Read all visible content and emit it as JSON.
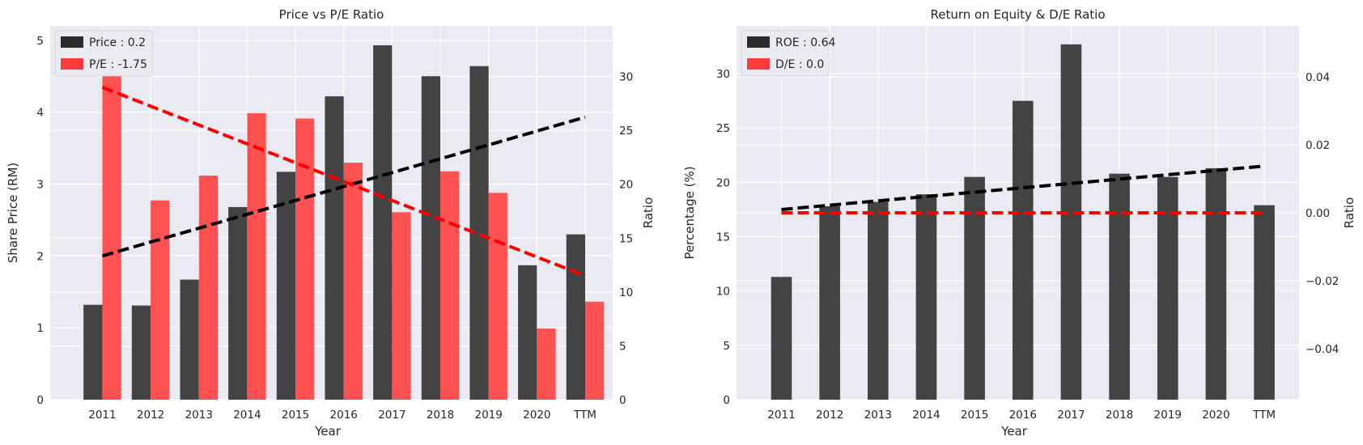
{
  "chart_data": [
    {
      "type": "bar",
      "title": "Price vs P/E Ratio",
      "xlabel": "Year",
      "ylabel": "Share Price (RM)",
      "ylabel2": "Ratio",
      "categories": [
        "2011",
        "2012",
        "2013",
        "2014",
        "2015",
        "2016",
        "2017",
        "2018",
        "2019",
        "2020",
        "TTM"
      ],
      "ylim": [
        0,
        5.2
      ],
      "y2lim": [
        0,
        34.7
      ],
      "yticks": [
        0,
        1,
        2,
        3,
        4,
        5
      ],
      "y2ticks": [
        0,
        5,
        10,
        15,
        20,
        25,
        30
      ],
      "series": [
        {
          "name": "Price : 0.2",
          "axis": "left",
          "color": "#2b2b2b",
          "values": [
            1.32,
            1.31,
            1.67,
            2.68,
            3.17,
            4.22,
            4.93,
            4.5,
            4.64,
            1.87,
            2.3
          ]
        },
        {
          "name": "P/E : -1.75",
          "axis": "right",
          "color": "#ff3b3b",
          "values": [
            32.9,
            18.5,
            20.8,
            26.6,
            26.1,
            22.0,
            17.4,
            21.2,
            19.2,
            6.6,
            9.1
          ]
        }
      ],
      "trendlines": [
        {
          "series": "Price : 0.2",
          "axis": "left",
          "color": "#000000",
          "from": [
            0,
            2.0
          ],
          "to": [
            10,
            3.93
          ]
        },
        {
          "series": "P/E : -1.75",
          "axis": "right",
          "color": "#ff0000",
          "from": [
            0,
            29.0
          ],
          "to": [
            10,
            11.5
          ]
        }
      ],
      "legend": "top-left",
      "grid": true
    },
    {
      "type": "bar",
      "title": "Return on Equity & D/E Ratio",
      "xlabel": "Year",
      "ylabel": "Percentage (%)",
      "ylabel2": "Ratio",
      "categories": [
        "2011",
        "2012",
        "2013",
        "2014",
        "2015",
        "2016",
        "2017",
        "2018",
        "2019",
        "2020",
        "TTM"
      ],
      "ylim": [
        0,
        34.4
      ],
      "y2lim": [
        -0.055,
        0.055
      ],
      "yticks": [
        0,
        5,
        10,
        15,
        20,
        25,
        30
      ],
      "y2ticks": [
        -0.04,
        -0.02,
        0.0,
        0.02,
        0.04
      ],
      "y2tick_labels": [
        "−0.04",
        "−0.02",
        "0.00",
        "0.02",
        "0.04"
      ],
      "series": [
        {
          "name": "ROE : 0.64",
          "axis": "left",
          "color": "#2b2b2b",
          "values": [
            11.3,
            17.8,
            18.2,
            18.9,
            20.5,
            27.5,
            32.7,
            20.8,
            20.5,
            21.3,
            17.9
          ]
        },
        {
          "name": "D/E : 0.0",
          "axis": "right",
          "color": "#ff3b3b",
          "values": [
            0,
            0,
            0,
            0,
            0,
            0,
            0,
            0,
            0,
            0,
            0
          ]
        }
      ],
      "trendlines": [
        {
          "series": "ROE : 0.64",
          "axis": "left",
          "color": "#000000",
          "from": [
            0,
            17.5
          ],
          "to": [
            10,
            21.5
          ]
        },
        {
          "series": "D/E : 0.0",
          "axis": "right",
          "color": "#ff0000",
          "from": [
            0,
            0.0
          ],
          "to": [
            10,
            0.0
          ]
        }
      ],
      "legend": "top-left",
      "grid": true
    }
  ]
}
